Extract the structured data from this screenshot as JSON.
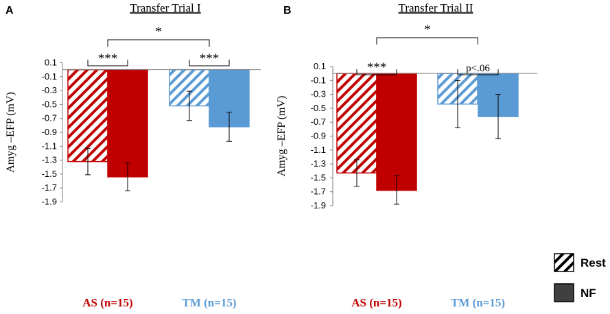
{
  "figure": {
    "legend": {
      "items": [
        {
          "label": "Rest",
          "style": "hatched"
        },
        {
          "label": "NF",
          "style": "solid"
        }
      ],
      "solid_color": "#404040"
    }
  },
  "chart_data": [
    {
      "type": "bar",
      "panel": "A",
      "title": "Transfer Trial I",
      "ylabel": "Amyg –EFP (mV)",
      "ylim": [
        -1.9,
        0.1
      ],
      "yticks": [
        "0.1",
        "-0.1",
        "-0.3",
        "-0.5",
        "-0.7",
        "-0.9",
        "-1.1",
        "-1.3",
        "-1.5",
        "-1.7",
        "-1.9"
      ],
      "groups": [
        {
          "label": "AS (n=15)",
          "color": "#c00000",
          "bars": [
            {
              "series": "Rest",
              "value": -1.32,
              "err_low": -1.51,
              "err_high": -1.13
            },
            {
              "series": "NF",
              "value": -1.54,
              "err_low": -1.74,
              "err_high": -1.34
            }
          ]
        },
        {
          "label": "TM (n=15)",
          "color": "#5b9bd5",
          "bars": [
            {
              "series": "Rest",
              "value": -0.52,
              "err_low": -0.73,
              "err_high": -0.31
            },
            {
              "series": "NF",
              "value": -0.82,
              "err_low": -1.03,
              "err_high": -0.61
            }
          ]
        }
      ],
      "annotations": {
        "within_group": [
          "***",
          "***"
        ],
        "between_group": "*"
      }
    },
    {
      "type": "bar",
      "panel": "B",
      "title": "Transfer Trial II",
      "ylabel": "Amyg –EFP (mV)",
      "ylim": [
        -1.9,
        0.1
      ],
      "yticks": [
        "0.1",
        "-0.1",
        "-0.3",
        "-0.5",
        "-0.7",
        "-0.9",
        "-1.1",
        "-1.3",
        "-1.5",
        "-1.7",
        "-1.9"
      ],
      "groups": [
        {
          "label": "AS (n=15)",
          "color": "#c00000",
          "bars": [
            {
              "series": "Rest",
              "value": -1.43,
              "err_low": -1.62,
              "err_high": -1.24
            },
            {
              "series": "NF",
              "value": -1.68,
              "err_low": -1.88,
              "err_high": -1.47
            }
          ]
        },
        {
          "label": "TM (n=15)",
          "color": "#5b9bd5",
          "bars": [
            {
              "series": "Rest",
              "value": -0.44,
              "err_low": -0.78,
              "err_high": -0.1
            },
            {
              "series": "NF",
              "value": -0.62,
              "err_low": -0.94,
              "err_high": -0.3
            }
          ]
        }
      ],
      "annotations": {
        "within_group": [
          "***",
          "p<.06"
        ],
        "between_group": "*"
      }
    }
  ]
}
